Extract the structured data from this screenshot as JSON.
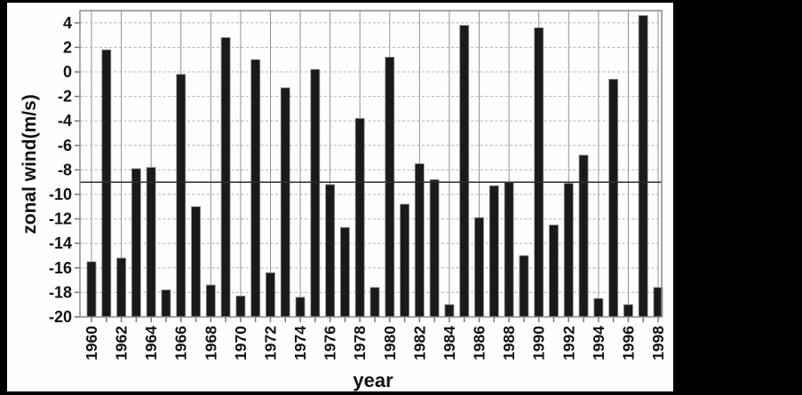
{
  "chart_data": {
    "type": "bar",
    "title": "",
    "ylabel": "zonal wind(m/s)",
    "xlabel": "year",
    "ylim": [
      -20,
      5
    ],
    "baseline": -20,
    "yticks": [
      4,
      2,
      0,
      -2,
      -4,
      -6,
      -8,
      -10,
      -12,
      -14,
      -16,
      -18,
      -20
    ],
    "xtick_labels": [
      1960,
      1962,
      1964,
      1966,
      1968,
      1970,
      1972,
      1974,
      1976,
      1978,
      1980,
      1982,
      1984,
      1986,
      1988,
      1990,
      1992,
      1994,
      1996,
      1998
    ],
    "reference_line_y": -9,
    "grid": "horizontal dashed gridlines every 2 units; thin solid vertical gridlines at labeled years; minor x ticks every year",
    "legend": "none",
    "years": [
      1960,
      1961,
      1962,
      1963,
      1964,
      1965,
      1966,
      1967,
      1968,
      1969,
      1970,
      1971,
      1972,
      1973,
      1974,
      1975,
      1976,
      1977,
      1978,
      1979,
      1980,
      1981,
      1982,
      1983,
      1984,
      1985,
      1986,
      1987,
      1988,
      1989,
      1990,
      1991,
      1992,
      1993,
      1994,
      1995,
      1996,
      1997,
      1998
    ],
    "values": [
      -15.5,
      1.8,
      -15.2,
      -7.9,
      -7.8,
      -17.8,
      -0.2,
      -11.0,
      -17.4,
      2.8,
      -18.3,
      1.0,
      -16.4,
      -1.3,
      -18.4,
      0.2,
      -9.2,
      -12.7,
      -3.8,
      -17.6,
      1.2,
      -10.8,
      -7.5,
      -8.8,
      -19.0,
      3.8,
      -11.9,
      -9.3,
      -9.0,
      -15.0,
      3.6,
      -12.5,
      -9.1,
      -6.8,
      -18.5,
      -0.6,
      -19.0,
      4.6,
      -17.6
    ]
  },
  "colors": {
    "canvas_background": "#000000",
    "panel_background": "#fefefe",
    "bar_fill": "#1a1a1a",
    "bar_edge": "#8a8a8a",
    "plot_border": "#8c8c8c",
    "h_gridline": "#b0b0b0",
    "v_gridline": "#6e6e6e",
    "tick_mark": "#777777",
    "reference_line": "#2e2e2e",
    "text": "#111111"
  }
}
